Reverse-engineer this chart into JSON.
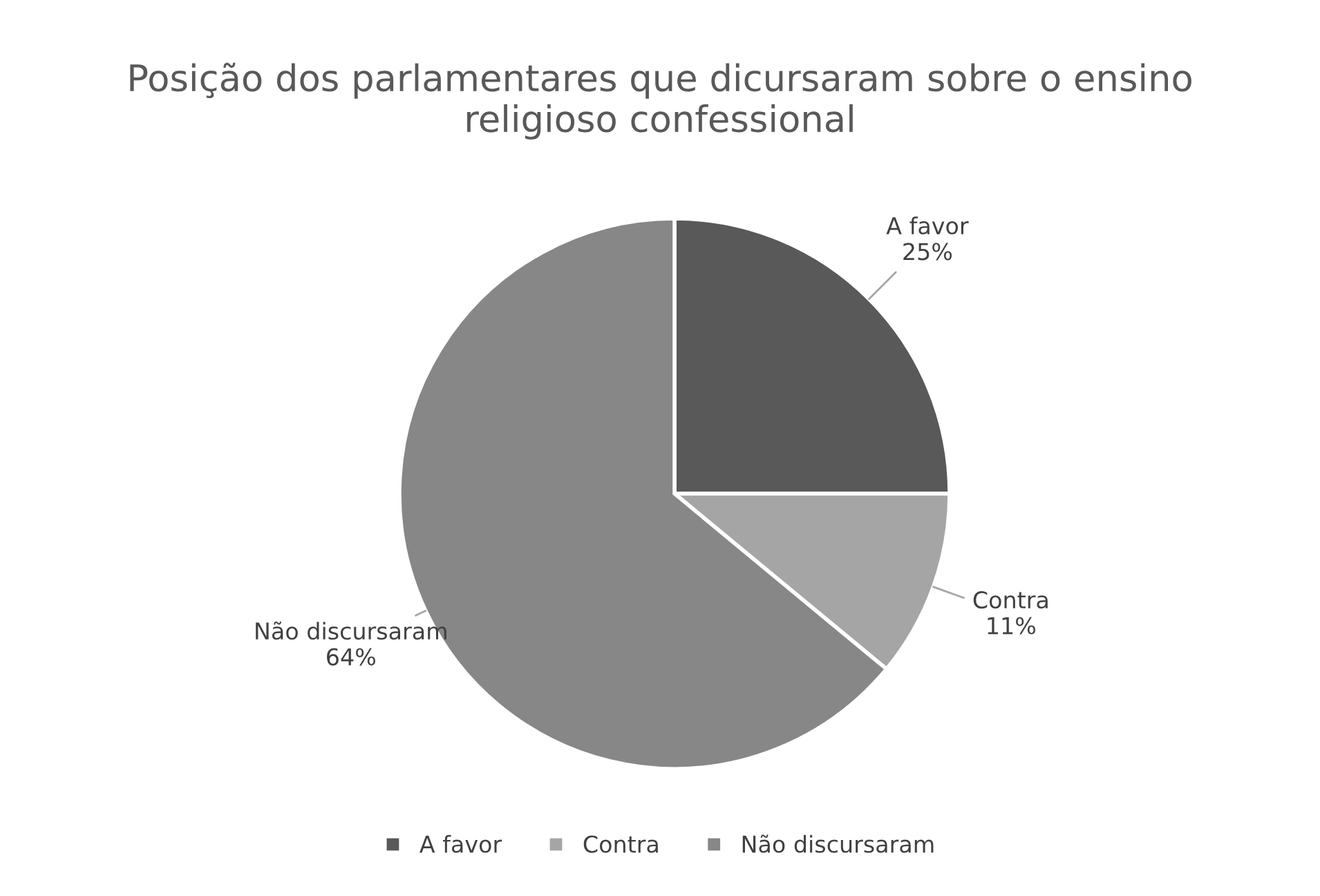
{
  "chart_data": {
    "type": "pie",
    "title": "Posição dos parlamentares que dicursaram sobre o ensino religioso confessional",
    "categories": [
      "A favor",
      "Contra",
      "Não discursaram"
    ],
    "values": [
      25,
      11,
      64
    ],
    "value_labels": [
      "25%",
      "11%",
      "64%"
    ],
    "colors": [
      "#595959",
      "#a5a5a5",
      "#878787"
    ],
    "legend": "bottom"
  }
}
